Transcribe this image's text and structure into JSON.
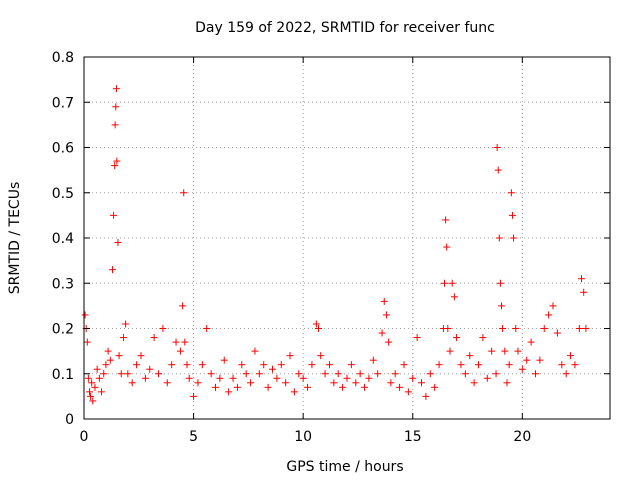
{
  "chart_data": {
    "type": "scatter",
    "title": "Day 159 of 2022, SRMTID for receiver func",
    "xlabel": "GPS time / hours",
    "ylabel": "SRMTID / TECUs",
    "xlim": [
      0,
      24
    ],
    "ylim": [
      0,
      0.8
    ],
    "xticks": [
      0,
      5,
      10,
      15,
      20
    ],
    "xtick_labels": [
      "0",
      "5",
      "10",
      "15",
      "20"
    ],
    "yticks": [
      0,
      0.1,
      0.2,
      0.3,
      0.4,
      0.5,
      0.6,
      0.7,
      0.8
    ],
    "ytick_labels": [
      "0",
      "0.1",
      "0.2",
      "0.3",
      "0.4",
      "0.5",
      "0.6",
      "0.7",
      "0.8"
    ],
    "grid": true,
    "marker": "+",
    "color": "#ff0000",
    "series": [
      {
        "name": "SRMTID",
        "x": [
          0.05,
          0.1,
          0.15,
          0.2,
          0.25,
          0.3,
          0.35,
          0.4,
          0.5,
          0.6,
          0.7,
          0.8,
          0.9,
          1.0,
          1.1,
          1.2,
          1.3,
          1.35,
          1.4,
          1.42,
          1.45,
          1.48,
          1.5,
          1.55,
          1.6,
          1.7,
          1.8,
          1.9,
          2.0,
          2.2,
          2.4,
          2.6,
          2.8,
          3.0,
          3.2,
          3.4,
          3.6,
          3.8,
          4.0,
          4.2,
          4.4,
          4.5,
          4.55,
          4.6,
          4.7,
          4.8,
          5.0,
          5.2,
          5.4,
          5.6,
          5.8,
          6.0,
          6.2,
          6.4,
          6.6,
          6.8,
          7.0,
          7.2,
          7.4,
          7.6,
          7.8,
          8.0,
          8.2,
          8.4,
          8.6,
          8.8,
          9.0,
          9.2,
          9.4,
          9.6,
          9.8,
          10.0,
          10.2,
          10.4,
          10.6,
          10.7,
          10.8,
          11.0,
          11.2,
          11.4,
          11.6,
          11.8,
          12.0,
          12.2,
          12.4,
          12.6,
          12.8,
          13.0,
          13.2,
          13.4,
          13.6,
          13.7,
          13.8,
          13.9,
          14.0,
          14.2,
          14.4,
          14.6,
          14.8,
          15.0,
          15.2,
          15.4,
          15.6,
          15.8,
          16.0,
          16.2,
          16.4,
          16.45,
          16.5,
          16.55,
          16.6,
          16.7,
          16.8,
          16.9,
          17.0,
          17.2,
          17.4,
          17.6,
          17.8,
          18.0,
          18.2,
          18.4,
          18.6,
          18.8,
          18.85,
          18.9,
          18.95,
          19.0,
          19.05,
          19.1,
          19.2,
          19.3,
          19.4,
          19.5,
          19.55,
          19.6,
          19.7,
          19.8,
          20.0,
          20.2,
          20.4,
          20.6,
          20.8,
          21.0,
          21.2,
          21.4,
          21.6,
          21.8,
          22.0,
          22.2,
          22.4,
          22.6,
          22.7,
          22.8,
          22.9
        ],
        "y": [
          0.23,
          0.2,
          0.17,
          0.09,
          0.06,
          0.05,
          0.08,
          0.04,
          0.07,
          0.11,
          0.09,
          0.06,
          0.1,
          0.12,
          0.15,
          0.13,
          0.33,
          0.45,
          0.56,
          0.65,
          0.69,
          0.73,
          0.57,
          0.39,
          0.14,
          0.1,
          0.18,
          0.21,
          0.1,
          0.08,
          0.12,
          0.14,
          0.09,
          0.11,
          0.18,
          0.1,
          0.2,
          0.08,
          0.12,
          0.17,
          0.15,
          0.25,
          0.5,
          0.17,
          0.12,
          0.09,
          0.05,
          0.08,
          0.12,
          0.2,
          0.1,
          0.07,
          0.09,
          0.13,
          0.06,
          0.09,
          0.07,
          0.12,
          0.1,
          0.08,
          0.15,
          0.1,
          0.12,
          0.07,
          0.11,
          0.09,
          0.12,
          0.08,
          0.14,
          0.06,
          0.1,
          0.09,
          0.07,
          0.12,
          0.21,
          0.2,
          0.14,
          0.1,
          0.12,
          0.08,
          0.1,
          0.07,
          0.09,
          0.12,
          0.08,
          0.1,
          0.07,
          0.09,
          0.13,
          0.1,
          0.19,
          0.26,
          0.23,
          0.17,
          0.08,
          0.1,
          0.07,
          0.12,
          0.06,
          0.09,
          0.18,
          0.08,
          0.05,
          0.1,
          0.07,
          0.12,
          0.2,
          0.3,
          0.44,
          0.38,
          0.2,
          0.15,
          0.3,
          0.27,
          0.18,
          0.12,
          0.1,
          0.14,
          0.08,
          0.12,
          0.18,
          0.09,
          0.15,
          0.1,
          0.6,
          0.55,
          0.4,
          0.3,
          0.25,
          0.2,
          0.15,
          0.08,
          0.12,
          0.5,
          0.45,
          0.4,
          0.2,
          0.15,
          0.11,
          0.13,
          0.17,
          0.1,
          0.13,
          0.2,
          0.23,
          0.25,
          0.19,
          0.12,
          0.1,
          0.14,
          0.12,
          0.2,
          0.31,
          0.28,
          0.2
        ]
      }
    ]
  },
  "page": {
    "background": "#ffffff",
    "axis_color": "#000000",
    "grid_color": "#a0a0a0"
  }
}
